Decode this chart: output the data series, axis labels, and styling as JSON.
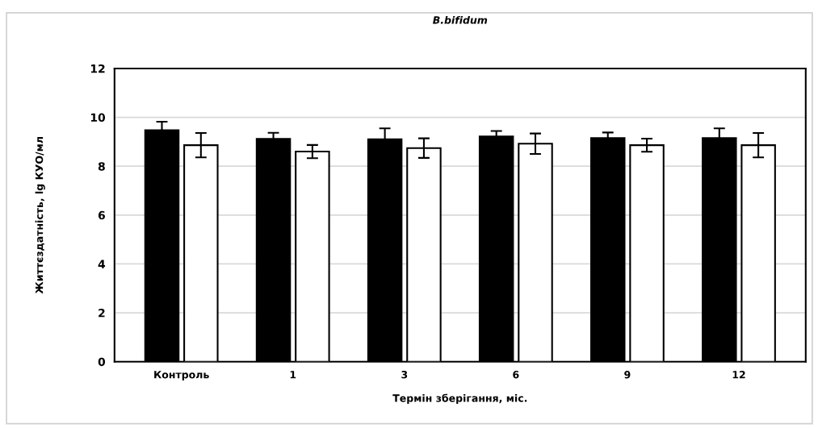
{
  "chart_data": {
    "type": "bar",
    "title": "B.bifidum",
    "xlabel": "Термін зберігання, міс.",
    "ylabel": "Життєздатність, lg КУО/мл",
    "categories": [
      "Контроль",
      "1",
      "3",
      "6",
      "9",
      "12"
    ],
    "series": [
      {
        "color": "#000000",
        "values": [
          9.47,
          9.12,
          9.1,
          9.22,
          9.15,
          9.15
        ],
        "errors": [
          0.35,
          0.25,
          0.45,
          0.22,
          0.23,
          0.4
        ]
      },
      {
        "color": "#ffffff",
        "values": [
          8.86,
          8.6,
          8.74,
          8.92,
          8.86,
          8.86
        ],
        "errors": [
          0.5,
          0.27,
          0.4,
          0.42,
          0.27,
          0.5
        ]
      }
    ],
    "ylim": [
      0,
      12
    ],
    "yticks": [
      0,
      2,
      4,
      6,
      8,
      10,
      12
    ],
    "grid": "y",
    "legend": false
  }
}
